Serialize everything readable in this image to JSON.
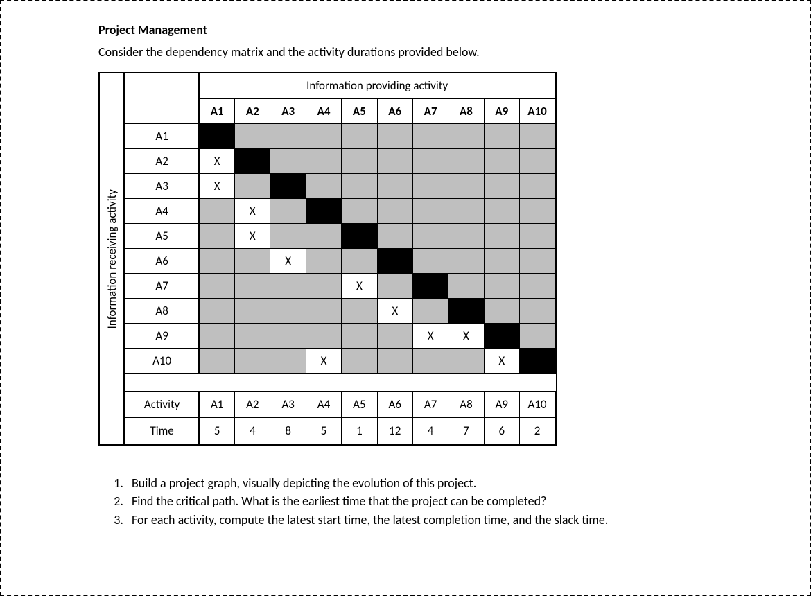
{
  "title": "Project Management",
  "intro": "Consider the dependency matrix and the activity durations provided below.",
  "matrix": {
    "top_label": "Information providing activity",
    "side_label": "Information receiving activity",
    "activities": [
      "A1",
      "A2",
      "A3",
      "A4",
      "A5",
      "A6",
      "A7",
      "A8",
      "A9",
      "A10"
    ],
    "x_mark": "X",
    "cells": {
      "A2": [
        "A1"
      ],
      "A3": [
        "A1"
      ],
      "A4": [
        "A2"
      ],
      "A5": [
        "A2"
      ],
      "A6": [
        "A3"
      ],
      "A7": [
        "A5"
      ],
      "A8": [
        "A6"
      ],
      "A9": [
        "A7",
        "A8"
      ],
      "A10": [
        "A4",
        "A9"
      ]
    },
    "colors": {
      "blank": "#bfbfbf",
      "diagonal": "#000000",
      "mark_bg": "#ffffff",
      "border": "#000000"
    }
  },
  "time_table": {
    "row1_label": "Activity",
    "row2_label": "Time",
    "columns": [
      "A1",
      "A2",
      "A3",
      "A4",
      "A5",
      "A6",
      "A7",
      "A8",
      "A9",
      "A10"
    ],
    "times": [
      5,
      4,
      8,
      5,
      1,
      12,
      4,
      7,
      6,
      2
    ]
  },
  "questions": [
    "Build a project graph, visually depicting the evolution of this project.",
    "Find the critical path. What is the earliest time that the project can be completed?",
    "For each activity, compute the latest start time, the latest completion time, and the slack time."
  ]
}
